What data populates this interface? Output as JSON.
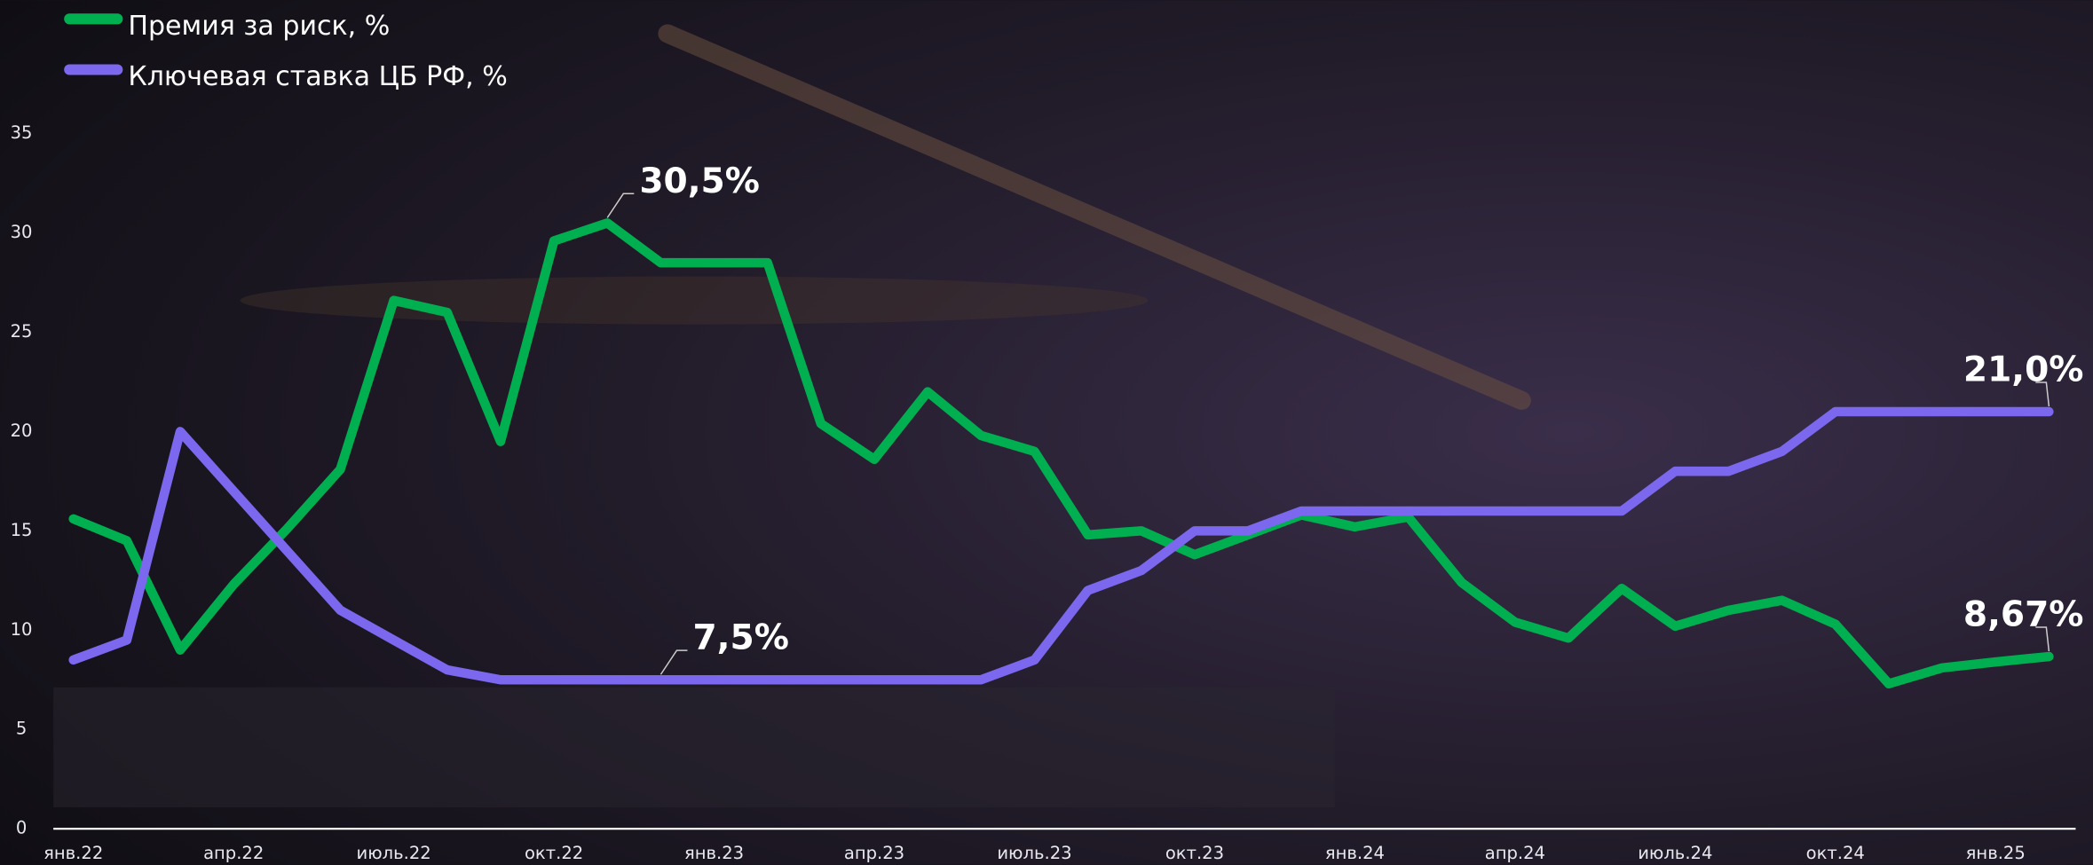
{
  "chart_data": {
    "type": "line",
    "categories": [
      "янв.22",
      null,
      null,
      "апр.22",
      null,
      null,
      "июль.22",
      null,
      null,
      "окт.22",
      null,
      null,
      "янв.23",
      null,
      null,
      "апр.23",
      null,
      null,
      "июль.23",
      null,
      null,
      "окт.23",
      null,
      null,
      "янв.24",
      null,
      null,
      "апр.24",
      null,
      null,
      "июль.24",
      null,
      null,
      "окт.24",
      null,
      null,
      "янв.25",
      null
    ],
    "series": [
      {
        "name": "Премия за риск, %",
        "color": "#00b050",
        "values": [
          15.6,
          14.5,
          9.0,
          12.3,
          15.1,
          18.1,
          26.6,
          26.0,
          19.5,
          29.6,
          30.5,
          28.5,
          28.5,
          28.5,
          20.4,
          18.6,
          22.0,
          19.8,
          19.0,
          14.8,
          15.0,
          13.8,
          14.8,
          15.8,
          15.2,
          15.7,
          12.4,
          10.4,
          9.6,
          12.1,
          10.2,
          11.0,
          11.5,
          10.3,
          7.3,
          8.1,
          8.4,
          8.67
        ],
        "value_labels": [
          null,
          null,
          null,
          null,
          null,
          null,
          null,
          null,
          null,
          null,
          "30,5%",
          null,
          null,
          null,
          null,
          null,
          null,
          null,
          null,
          null,
          null,
          null,
          null,
          null,
          null,
          null,
          null,
          null,
          null,
          null,
          null,
          null,
          null,
          null,
          null,
          null,
          null,
          "8,67%"
        ]
      },
      {
        "name": "Ключевая ставка ЦБ РФ, %",
        "color": "#7b68ee",
        "values": [
          8.5,
          9.5,
          20,
          17,
          14,
          11,
          9.5,
          8,
          7.5,
          7.5,
          7.5,
          7.5,
          7.5,
          7.5,
          7.5,
          7.5,
          7.5,
          7.5,
          8.5,
          12,
          13,
          15,
          15,
          16,
          16,
          16,
          16,
          16,
          16,
          16,
          18,
          18,
          19,
          21,
          21,
          21,
          21,
          21
        ],
        "value_labels": [
          null,
          null,
          null,
          null,
          null,
          null,
          null,
          null,
          null,
          null,
          null,
          "7,5%",
          null,
          null,
          null,
          null,
          null,
          null,
          null,
          null,
          null,
          null,
          null,
          null,
          null,
          null,
          null,
          null,
          null,
          null,
          null,
          null,
          null,
          null,
          null,
          null,
          null,
          "21,0%"
        ]
      }
    ],
    "ylim": [
      0,
      35
    ],
    "yticks": [
      0,
      5,
      10,
      15,
      20,
      25,
      30,
      35
    ],
    "legend": "top-left"
  }
}
